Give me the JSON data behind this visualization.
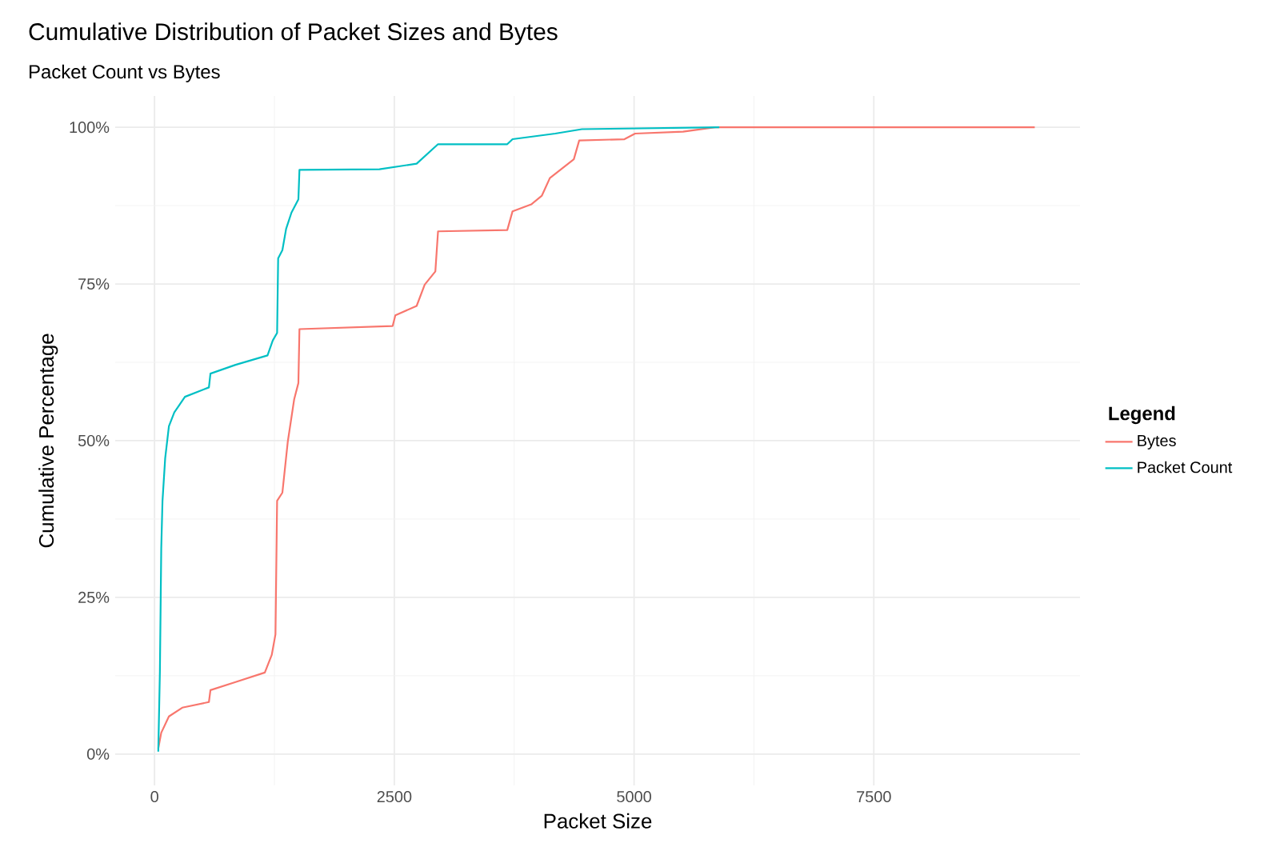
{
  "chart_data": {
    "type": "line",
    "title": "Cumulative Distribution of Packet Sizes and Bytes",
    "subtitle": "Packet Count vs Bytes",
    "xlabel": "Packet Size",
    "ylabel": "Cumulative Percentage",
    "legend_title": "Legend",
    "xlim": [
      -410,
      9650
    ],
    "ylim": [
      -5,
      105
    ],
    "xticks": [
      0,
      2500,
      5000,
      7500
    ],
    "yticks": [
      {
        "value": 0,
        "label": "0%"
      },
      {
        "value": 25,
        "label": "25%"
      },
      {
        "value": 50,
        "label": "50%"
      },
      {
        "value": 75,
        "label": "75%"
      },
      {
        "value": 100,
        "label": "100%"
      }
    ],
    "grid": true,
    "legend": "right",
    "series": [
      {
        "name": "Bytes",
        "color": "#f8766d",
        "x": [
          39,
          70,
          150,
          289,
          567,
          583,
          845,
          1150,
          1222,
          1261,
          1278,
          1333,
          1389,
          1456,
          1500,
          1511,
          2483,
          2511,
          2733,
          2817,
          2928,
          2956,
          3678,
          3733,
          3928,
          4039,
          4122,
          4372,
          4428,
          4900,
          5011,
          5511,
          5845,
          9178
        ],
        "values": [
          0.9,
          3.4,
          6.0,
          7.4,
          8.3,
          10.2,
          11.5,
          13.0,
          15.8,
          19.1,
          40.4,
          41.7,
          49.8,
          56.6,
          59.2,
          67.8,
          68.3,
          70.0,
          71.5,
          74.9,
          77.0,
          83.4,
          83.6,
          86.6,
          87.7,
          89.1,
          91.9,
          94.9,
          97.9,
          98.1,
          99.0,
          99.3,
          100,
          100
        ]
      },
      {
        "name": "Packet Count",
        "color": "#00bfc4",
        "x": [
          39,
          56,
          70,
          83,
          111,
          150,
          206,
          317,
          567,
          583,
          845,
          1178,
          1233,
          1278,
          1289,
          1333,
          1372,
          1428,
          1500,
          1511,
          2345,
          2733,
          2956,
          3678,
          3733,
          4178,
          4456,
          5889
        ],
        "values": [
          0.4,
          13.2,
          32.8,
          40.4,
          47.2,
          52.3,
          54.5,
          57.0,
          58.5,
          60.7,
          62.1,
          63.6,
          66.0,
          67.2,
          79.1,
          80.4,
          83.8,
          86.4,
          88.5,
          93.2,
          93.3,
          94.2,
          97.3,
          97.3,
          98.1,
          99.0,
          99.7,
          100
        ]
      }
    ]
  }
}
